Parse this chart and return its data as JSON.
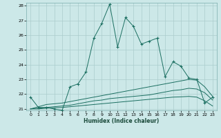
{
  "xlabel": "Humidex (Indice chaleur)",
  "background_color": "#cce8e8",
  "grid_color": "#aacccc",
  "line_color": "#1a6e60",
  "x_main": [
    0,
    1,
    2,
    3,
    4,
    5,
    6,
    7,
    8,
    9,
    10,
    11,
    12,
    13,
    14,
    15,
    16,
    17,
    18,
    19,
    20,
    21,
    22,
    23
  ],
  "y_main": [
    21.8,
    21.1,
    21.1,
    21.0,
    20.9,
    22.5,
    22.7,
    23.5,
    25.8,
    26.8,
    28.1,
    25.2,
    27.2,
    26.6,
    25.4,
    25.6,
    25.8,
    23.2,
    24.2,
    23.9,
    23.1,
    23.0,
    21.4,
    21.8
  ],
  "y_line2": [
    21.0,
    21.15,
    21.3,
    21.35,
    21.4,
    21.5,
    21.6,
    21.7,
    21.8,
    21.9,
    22.0,
    22.1,
    22.2,
    22.3,
    22.4,
    22.5,
    22.6,
    22.7,
    22.8,
    22.9,
    23.0,
    22.95,
    22.5,
    21.85
  ],
  "y_line3": [
    21.0,
    21.05,
    21.1,
    21.15,
    21.2,
    21.25,
    21.35,
    21.45,
    21.55,
    21.6,
    21.7,
    21.75,
    21.8,
    21.85,
    21.9,
    21.95,
    22.05,
    22.15,
    22.25,
    22.3,
    22.4,
    22.35,
    22.1,
    21.6
  ],
  "y_line4": [
    21.0,
    21.0,
    21.05,
    21.08,
    21.1,
    21.15,
    21.2,
    21.25,
    21.3,
    21.35,
    21.4,
    21.45,
    21.5,
    21.55,
    21.6,
    21.65,
    21.7,
    21.75,
    21.8,
    21.82,
    21.85,
    21.8,
    21.55,
    21.2
  ],
  "ylim": [
    20.9,
    28.2
  ],
  "xlim": [
    -0.5,
    23.5
  ],
  "yticks": [
    21,
    22,
    23,
    24,
    25,
    26,
    27,
    28
  ],
  "xticks": [
    0,
    1,
    2,
    3,
    4,
    5,
    6,
    7,
    8,
    9,
    10,
    11,
    12,
    13,
    14,
    15,
    16,
    17,
    18,
    19,
    20,
    21,
    22,
    23
  ]
}
